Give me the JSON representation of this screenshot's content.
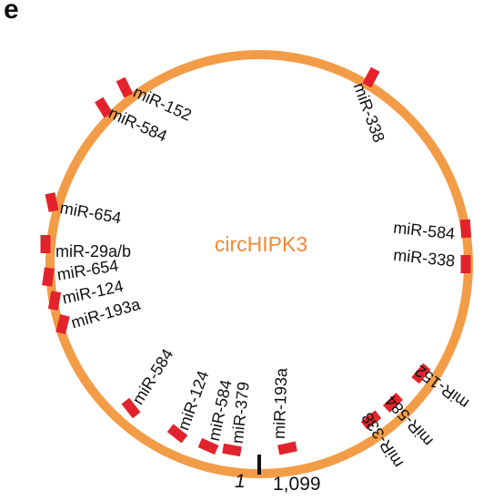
{
  "panel_letter": "e",
  "center_label": "circHIPK3",
  "start_label": "1",
  "end_label": "1,099",
  "colors": {
    "ring": "#F39C47",
    "site": "#E3232C",
    "center_text": "#F08A3A",
    "tick": "#111111",
    "text": "#111111"
  },
  "sites": [
    {
      "label": "miR-338"
    },
    {
      "label": "miR-152"
    },
    {
      "label": "miR-584"
    },
    {
      "label": "miR-654"
    },
    {
      "label": "miR-29a/b"
    },
    {
      "label": "miR-654"
    },
    {
      "label": "miR-124"
    },
    {
      "label": "miR-193a"
    },
    {
      "label": "miR-584"
    },
    {
      "label": "miR-124"
    },
    {
      "label": "miR-584"
    },
    {
      "label": "miR-379"
    },
    {
      "label": "miR-193a"
    },
    {
      "label": "miR-338"
    },
    {
      "label": "miR-584"
    },
    {
      "label": "miR-152"
    },
    {
      "label": "miR-584"
    },
    {
      "label": "miR-338"
    }
  ]
}
